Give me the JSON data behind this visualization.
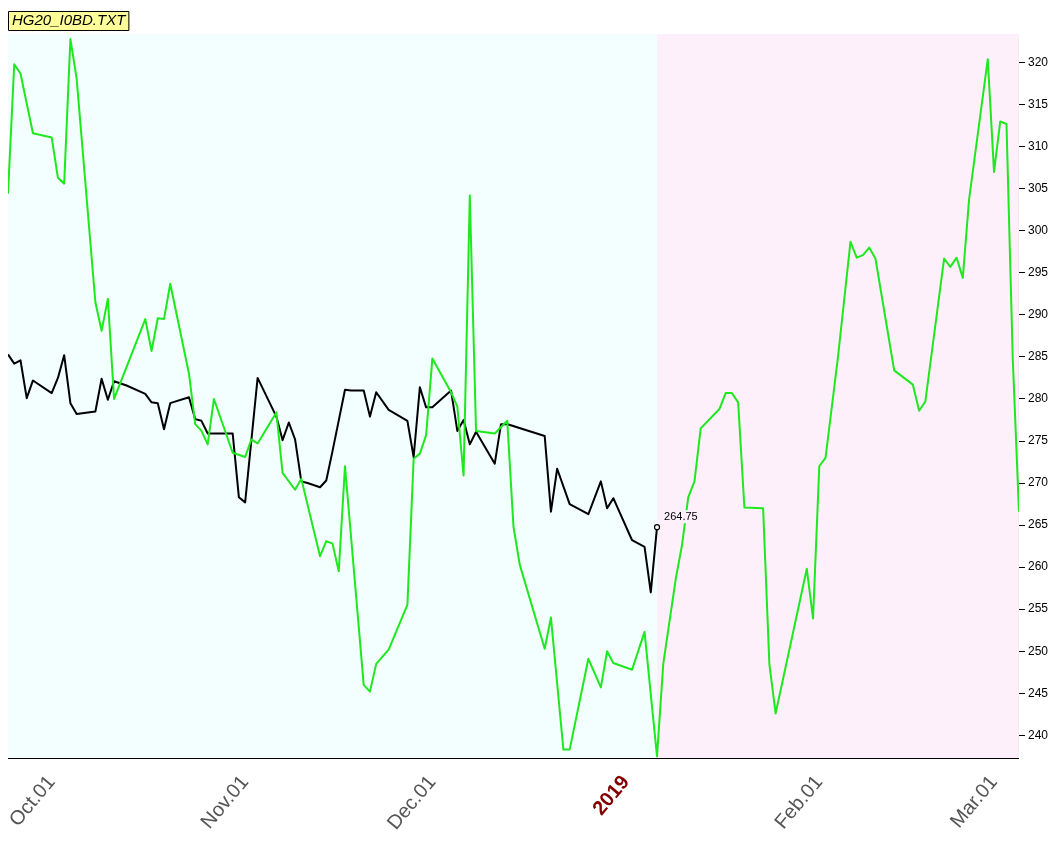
{
  "chart_data": {
    "type": "line",
    "title": "HG20_I0BD.TXT",
    "xlim": [
      "2018-09-24",
      "2019-03-05"
    ],
    "xticks": [
      {
        "value": "2018-10-01",
        "label": "Oct.01"
      },
      {
        "value": "2018-11-01",
        "label": "Nov.01"
      },
      {
        "value": "2018-12-01",
        "label": "Dec.01"
      },
      {
        "value": "2019-01-01",
        "label": "2019"
      },
      {
        "value": "2019-02-01",
        "label": "Feb.01"
      },
      {
        "value": "2019-03-01",
        "label": "Mar.01"
      }
    ],
    "ylim": [
      237.3,
      323.4
    ],
    "yticks": [
      240,
      245,
      250,
      255,
      260,
      265,
      270,
      275,
      280,
      285,
      290,
      295,
      300,
      305,
      310,
      315,
      320
    ],
    "grid": false,
    "legend": false,
    "marker": "none",
    "line_style": "solid",
    "bands": [
      {
        "axis": "x",
        "from": "2018-09-24",
        "to": "2019-01-06",
        "color": "#f3fefe"
      },
      {
        "axis": "x",
        "from": "2019-01-06",
        "to": "2019-03-05",
        "color": "#fdf0fb"
      }
    ],
    "annotations": [
      {
        "text": "264.75",
        "x": "2019-01-06",
        "y": 264.75
      }
    ],
    "series": [
      {
        "color": "#1ee81e",
        "x": [
          "2018-09-24",
          "2018-09-25",
          "2018-09-26",
          "2018-09-28",
          "2018-10-01",
          "2018-10-02",
          "2018-10-03",
          "2018-10-04",
          "2018-10-05",
          "2018-10-08",
          "2018-10-09",
          "2018-10-10",
          "2018-10-11",
          "2018-10-16",
          "2018-10-17",
          "2018-10-18",
          "2018-10-19",
          "2018-10-20",
          "2018-10-23",
          "2018-10-24",
          "2018-10-25",
          "2018-10-26",
          "2018-10-27",
          "2018-10-30",
          "2018-11-01",
          "2018-11-02",
          "2018-11-03",
          "2018-11-06",
          "2018-11-07",
          "2018-11-09",
          "2018-11-10",
          "2018-11-13",
          "2018-11-14",
          "2018-11-15",
          "2018-11-16",
          "2018-11-17",
          "2018-11-20",
          "2018-11-21",
          "2018-11-22",
          "2018-11-24",
          "2018-11-27",
          "2018-11-28",
          "2018-11-29",
          "2018-11-30",
          "2018-12-01",
          "2018-12-04",
          "2018-12-05",
          "2018-12-06",
          "2018-12-07",
          "2018-12-08",
          "2018-12-11",
          "2018-12-13",
          "2018-12-14",
          "2018-12-15",
          "2018-12-19",
          "2018-12-20",
          "2018-12-22",
          "2018-12-23",
          "2018-12-26",
          "2018-12-28",
          "2018-12-29",
          "2018-12-30",
          "2019-01-02",
          "2019-01-04",
          "2019-01-06",
          "2019-01-07",
          "2019-01-09",
          "2019-01-10",
          "2019-01-11",
          "2019-01-12",
          "2019-01-13",
          "2019-01-16",
          "2019-01-17",
          "2019-01-18",
          "2019-01-19",
          "2019-01-20",
          "2019-01-23",
          "2019-01-24",
          "2019-01-25",
          "2019-01-30",
          "2019-01-31",
          "2019-02-01",
          "2019-02-02",
          "2019-02-04",
          "2019-02-06",
          "2019-02-07",
          "2019-02-08",
          "2019-02-09",
          "2019-02-10",
          "2019-02-13",
          "2019-02-16",
          "2019-02-17",
          "2019-02-18",
          "2019-02-21",
          "2019-02-22",
          "2019-02-23",
          "2019-02-24",
          "2019-02-25",
          "2019-02-28",
          "2019-03-01",
          "2019-03-02",
          "2019-03-03",
          "2019-03-04",
          "2019-03-05"
        ],
        "values": [
          304.4,
          319.8,
          318.7,
          311.6,
          311.1,
          306.3,
          305.6,
          322.8,
          318.1,
          291.5,
          288.1,
          291.9,
          280.0,
          289.5,
          285.7,
          289.6,
          289.5,
          293.7,
          283.0,
          277.0,
          276.2,
          274.6,
          280.0,
          273.6,
          273.1,
          275.2,
          274.7,
          278.4,
          271.2,
          269.2,
          270.5,
          261.3,
          263.1,
          262.8,
          259.5,
          272.0,
          246.0,
          245.2,
          248.5,
          250.2,
          255.5,
          272.9,
          273.5,
          275.7,
          284.8,
          280.8,
          279.1,
          270.9,
          304.2,
          276.2,
          275.9,
          277.4,
          264.8,
          260.3,
          250.3,
          254.0,
          238.3,
          238.3,
          249.1,
          245.7,
          250.0,
          248.6,
          247.8,
          252.3,
          237.5,
          248.5,
          258.6,
          262.6,
          268.3,
          270.2,
          276.5,
          278.8,
          280.7,
          280.7,
          279.6,
          267.1,
          267.0,
          248.5,
          242.6,
          259.8,
          253.9,
          272.0,
          273.0,
          285.0,
          298.7,
          296.8,
          297.1,
          298.0,
          296.7,
          283.4,
          281.7,
          278.6,
          279.7,
          296.7,
          295.7,
          296.8,
          294.4,
          303.7,
          320.4,
          307.0,
          313.0,
          312.7,
          284.8,
          266.6
        ]
      },
      {
        "color": "#000000",
        "x": [
          "2018-09-24",
          "2018-09-25",
          "2018-09-26",
          "2018-09-27",
          "2018-09-28",
          "2018-10-01",
          "2018-10-02",
          "2018-10-03",
          "2018-10-04",
          "2018-10-05",
          "2018-10-08",
          "2018-10-09",
          "2018-10-10",
          "2018-10-11",
          "2018-10-13",
          "2018-10-16",
          "2018-10-17",
          "2018-10-18",
          "2018-10-19",
          "2018-10-20",
          "2018-10-23",
          "2018-10-24",
          "2018-10-25",
          "2018-10-26",
          "2018-10-30",
          "2018-10-31",
          "2018-11-01",
          "2018-11-03",
          "2018-11-06",
          "2018-11-07",
          "2018-11-08",
          "2018-11-09",
          "2018-11-10",
          "2018-11-11",
          "2018-11-13",
          "2018-11-14",
          "2018-11-15",
          "2018-11-17",
          "2018-11-18",
          "2018-11-20",
          "2018-11-21",
          "2018-11-22",
          "2018-11-24",
          "2018-11-27",
          "2018-11-28",
          "2018-11-29",
          "2018-11-30",
          "2018-12-01",
          "2018-12-04",
          "2018-12-05",
          "2018-12-06",
          "2018-12-07",
          "2018-12-08",
          "2018-12-11",
          "2018-12-12",
          "2018-12-13",
          "2018-12-19",
          "2018-12-20",
          "2018-12-21",
          "2018-12-23",
          "2018-12-26",
          "2018-12-28",
          "2018-12-29",
          "2018-12-30",
          "2019-01-02",
          "2019-01-04",
          "2019-01-05",
          "2019-01-06"
        ],
        "values": [
          285.3,
          284.2,
          284.6,
          280.1,
          282.2,
          280.7,
          282.5,
          285.2,
          279.5,
          278.2,
          278.5,
          282.4,
          279.9,
          282.1,
          281.6,
          280.6,
          279.6,
          279.5,
          276.4,
          279.5,
          280.2,
          277.6,
          277.4,
          275.9,
          275.9,
          268.3,
          267.7,
          282.5,
          277.9,
          275.1,
          277.2,
          275.2,
          270.2,
          270.0,
          269.5,
          270.3,
          273.8,
          281.1,
          281.0,
          281.0,
          277.9,
          280.8,
          278.7,
          277.4,
          273.1,
          281.4,
          279.0,
          279.0,
          281.0,
          276.2,
          277.5,
          274.6,
          276.1,
          272.3,
          277.0,
          277.0,
          275.6,
          266.6,
          271.7,
          267.5,
          266.3,
          270.2,
          267.0,
          268.2,
          263.2,
          262.4,
          257.0,
          264.75
        ]
      }
    ]
  }
}
